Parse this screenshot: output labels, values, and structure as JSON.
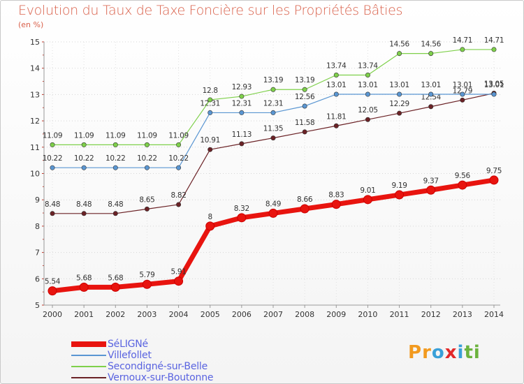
{
  "title": "Evolution du Taux de Taxe Foncière sur les Propriétés Bâties",
  "subtitle": "(en %)",
  "brand": {
    "letters": [
      "P",
      "r",
      "o",
      "x",
      "i",
      "t",
      "i"
    ],
    "colors": [
      "#f29a1f",
      "#f29a1f",
      "#3aa0d8",
      "#e2292a",
      "#3aa0d8",
      "#6cb33e",
      "#6cb33e"
    ]
  },
  "chart_data": {
    "type": "line",
    "title": "Evolution du Taux de Taxe Foncière sur les Propriétés Bâties",
    "ylabel": "(en %)",
    "xlabel": "",
    "ylim": [
      5,
      15
    ],
    "yticks": [
      5,
      6,
      7,
      8,
      9,
      10,
      11,
      12,
      13,
      14,
      15
    ],
    "x": [
      "2000",
      "2001",
      "2002",
      "2003",
      "2004",
      "2005",
      "2006",
      "2007",
      "2008",
      "2009",
      "2010",
      "2011",
      "2012",
      "2013",
      "2014"
    ],
    "legend_position": "bottom-left",
    "series": [
      {
        "name": "SéLIGNé",
        "color": "#e8140f",
        "values": [
          5.54,
          5.68,
          5.68,
          5.79,
          5.91,
          8,
          8.32,
          8.49,
          8.66,
          8.83,
          9.01,
          9.19,
          9.37,
          9.56,
          9.75
        ],
        "labels": [
          "5.54",
          "5.68",
          "5.68",
          "5.79",
          "5.91",
          "8",
          "8.32",
          "8.49",
          "8.66",
          "8.83",
          "9.01",
          "9.19",
          "9.37",
          "9.56",
          "9.75"
        ]
      },
      {
        "name": "Villefollet",
        "color": "#5a96d2",
        "values": [
          10.22,
          10.22,
          10.22,
          10.22,
          10.22,
          12.31,
          12.31,
          12.31,
          12.56,
          13.01,
          13.01,
          13.01,
          13.01,
          13.01,
          13.01
        ],
        "labels": [
          "10.22",
          "10.22",
          "10.22",
          "10.22",
          "10.22",
          "12.31",
          "12.31",
          "12.31",
          "12.56",
          "13.01",
          "13.01",
          "13.01",
          "13.01",
          "13.01",
          "13.01"
        ]
      },
      {
        "name": "Secondigné-sur-Belle",
        "color": "#7ed04a",
        "values": [
          11.09,
          11.09,
          11.09,
          11.09,
          11.09,
          12.8,
          12.93,
          13.19,
          13.19,
          13.74,
          13.74,
          14.56,
          14.56,
          14.71,
          14.71
        ],
        "labels": [
          "11.09",
          "11.09",
          "11.09",
          "11.09",
          "11.09",
          "12.8",
          "12.93",
          "13.19",
          "13.19",
          "13.74",
          "13.74",
          "14.56",
          "14.56",
          "14.71",
          "14.71"
        ]
      },
      {
        "name": "Vernoux-sur-Boutonne",
        "color": "#6b2226",
        "values": [
          8.48,
          8.48,
          8.48,
          8.65,
          8.82,
          10.91,
          11.13,
          11.35,
          11.58,
          11.81,
          12.05,
          12.29,
          12.54,
          12.79,
          13.05
        ],
        "labels": [
          "8.48",
          "8.48",
          "8.48",
          "8.65",
          "8.82",
          "10.91",
          "11.13",
          "11.35",
          "11.58",
          "11.81",
          "12.05",
          "12.29",
          "12.54",
          "12.79",
          "13.05"
        ]
      }
    ]
  }
}
